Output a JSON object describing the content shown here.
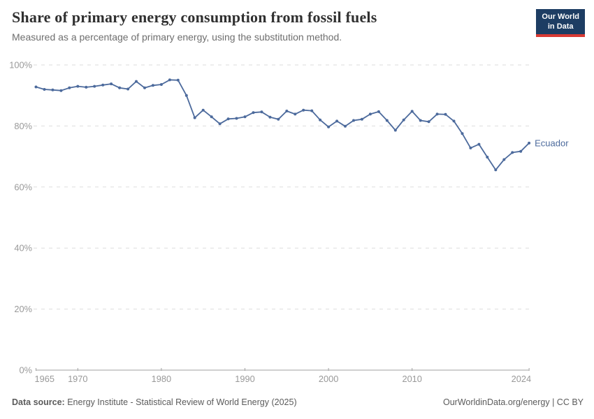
{
  "header": {
    "title": "Share of primary energy consumption from fossil fuels",
    "subtitle": "Measured as a percentage of primary energy, using the substitution method.",
    "logo": {
      "line1": "Our World",
      "line2": "in Data"
    }
  },
  "footer": {
    "source_label": "Data source:",
    "source_text": "Energy Institute - Statistical Review of World Energy (2025)",
    "attribution": "OurWorldinData.org/energy | CC BY"
  },
  "chart_data": {
    "type": "line",
    "title": "Share of primary energy consumption from fossil fuels",
    "subtitle": "Measured as a percentage of primary energy, using the substitution method.",
    "xlabel": "",
    "ylabel": "",
    "ylim": [
      0,
      100
    ],
    "grid": "horizontal-dashed",
    "legend": "end-of-line-label",
    "colors": {
      "line": "#4c6a9c",
      "grid": "#dddddd",
      "axis": "#a1a1a1",
      "tick_label": "#999999"
    },
    "yticks": [
      {
        "value": 0,
        "label": "0%"
      },
      {
        "value": 20,
        "label": "20%"
      },
      {
        "value": 40,
        "label": "40%"
      },
      {
        "value": 60,
        "label": "60%"
      },
      {
        "value": 80,
        "label": "80%"
      },
      {
        "value": 100,
        "label": "100%"
      }
    ],
    "xticks": [
      {
        "value": 1965,
        "label": "1965"
      },
      {
        "value": 1970,
        "label": "1970"
      },
      {
        "value": 1980,
        "label": "1980"
      },
      {
        "value": 1990,
        "label": "1990"
      },
      {
        "value": 2000,
        "label": "2000"
      },
      {
        "value": 2010,
        "label": "2010"
      },
      {
        "value": 2024,
        "label": "2024"
      }
    ],
    "series": [
      {
        "name": "Ecuador",
        "x": [
          1965,
          1966,
          1967,
          1968,
          1969,
          1970,
          1971,
          1972,
          1973,
          1974,
          1975,
          1976,
          1977,
          1978,
          1979,
          1980,
          1981,
          1982,
          1983,
          1984,
          1985,
          1986,
          1987,
          1988,
          1989,
          1990,
          1991,
          1992,
          1993,
          1994,
          1995,
          1996,
          1997,
          1998,
          1999,
          2000,
          2001,
          2002,
          2003,
          2004,
          2005,
          2006,
          2007,
          2008,
          2009,
          2010,
          2011,
          2012,
          2013,
          2014,
          2015,
          2016,
          2017,
          2018,
          2019,
          2020,
          2021,
          2022,
          2023,
          2024
        ],
        "values": [
          92.8,
          92.0,
          91.8,
          91.6,
          92.5,
          93.0,
          92.7,
          93.0,
          93.4,
          93.8,
          92.5,
          92.1,
          94.6,
          92.5,
          93.3,
          93.6,
          95.1,
          95.0,
          90.0,
          82.7,
          85.2,
          83.0,
          80.7,
          82.3,
          82.5,
          83.0,
          84.4,
          84.6,
          82.9,
          82.2,
          84.9,
          83.9,
          85.2,
          85.0,
          82.0,
          79.7,
          81.6,
          79.9,
          81.8,
          82.2,
          83.9,
          84.7,
          81.8,
          78.6,
          82.0,
          84.8,
          81.8,
          81.4,
          83.9,
          83.8,
          81.6,
          77.5,
          72.8,
          74.0,
          69.8,
          65.6,
          69.0,
          71.3,
          71.7,
          74.4
        ]
      }
    ]
  }
}
